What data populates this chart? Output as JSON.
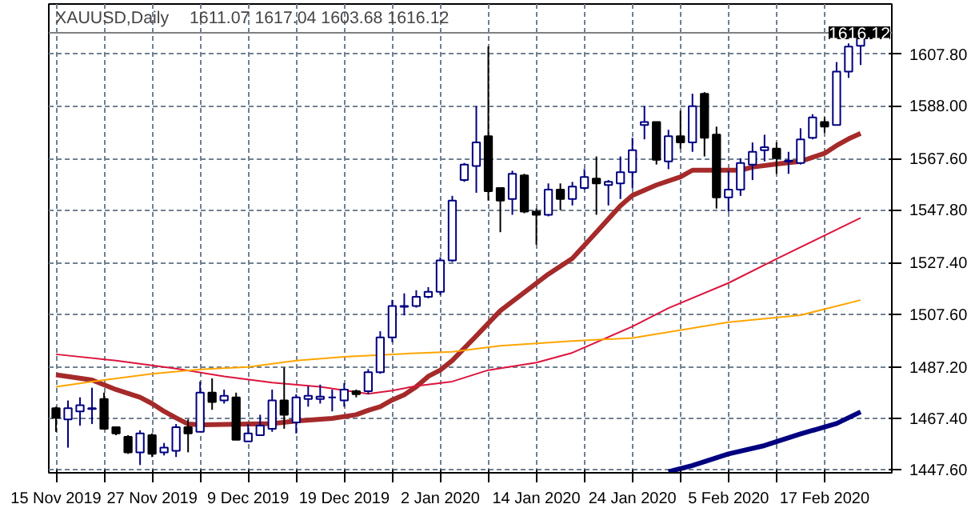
{
  "chart_data": {
    "type": "candlestick",
    "title": "XAUUSD,Daily",
    "subtitle": "1611.07 1617.04 1603.68 1616.12",
    "categories": [
      "15 Nov 2019",
      null,
      null,
      null,
      null,
      null,
      null,
      null,
      "27 Nov 2019",
      null,
      null,
      null,
      null,
      null,
      null,
      null,
      "9 Dec 2019",
      null,
      null,
      null,
      null,
      null,
      null,
      null,
      "19 Dec 2019",
      null,
      null,
      null,
      null,
      null,
      null,
      null,
      "2 Jan 2020",
      null,
      null,
      null,
      null,
      null,
      null,
      null,
      "14 Jan 2020",
      null,
      null,
      null,
      null,
      null,
      null,
      null,
      "24 Jan 2020",
      null,
      null,
      null,
      null,
      null,
      null,
      null,
      "5 Feb 2020",
      null,
      null,
      null,
      null,
      null,
      null,
      null,
      "17 Feb 2020",
      null,
      null,
      null
    ],
    "ohlc": [
      [
        1471.3,
        1471.9,
        1462.2,
        1467.6
      ],
      [
        1467.0,
        1474.3,
        1456.1,
        1471.3
      ],
      [
        1470.1,
        1475.5,
        1464.6,
        1472.5
      ],
      [
        1471.0,
        1479.2,
        1465.2,
        1471.3
      ],
      [
        1474.9,
        1477.3,
        1463.4,
        1463.4
      ],
      [
        1464.0,
        1464.0,
        1460.9,
        1461.6
      ],
      [
        1460.3,
        1460.9,
        1453.7,
        1454.3
      ],
      [
        1454.3,
        1462.8,
        1449.4,
        1461.6
      ],
      [
        1460.9,
        1461.6,
        1452.5,
        1453.7
      ],
      [
        1454.3,
        1457.9,
        1453.1,
        1456.1
      ],
      [
        1454.9,
        1465.2,
        1452.5,
        1464.0
      ],
      [
        1464.0,
        1467.0,
        1454.3,
        1461.6
      ],
      [
        1462.2,
        1481.6,
        1462.2,
        1477.3
      ],
      [
        1477.3,
        1482.8,
        1470.7,
        1473.7
      ],
      [
        1474.3,
        1478.5,
        1473.1,
        1476.1
      ],
      [
        1475.5,
        1477.3,
        1459.1,
        1459.1
      ],
      [
        1458.5,
        1465.2,
        1458.5,
        1461.6
      ],
      [
        1460.9,
        1468.8,
        1460.9,
        1464.6
      ],
      [
        1463.4,
        1478.5,
        1462.2,
        1474.3
      ],
      [
        1474.3,
        1487.0,
        1463.4,
        1468.8
      ],
      [
        1465.8,
        1476.7,
        1461.6,
        1475.5
      ],
      [
        1474.9,
        1479.8,
        1471.9,
        1476.1
      ],
      [
        1474.9,
        1480.4,
        1473.1,
        1475.8
      ],
      [
        1475.5,
        1478.5,
        1470.1,
        1475.5
      ],
      [
        1474.3,
        1481.0,
        1471.9,
        1478.5
      ],
      [
        1477.9,
        1478.5,
        1475.5,
        1476.7
      ],
      [
        1477.9,
        1486.4,
        1476.7,
        1485.2
      ],
      [
        1485.2,
        1501.0,
        1484.6,
        1498.6
      ],
      [
        1498.6,
        1513.1,
        1496.8,
        1510.7
      ],
      [
        1510.4,
        1515.6,
        1507.1,
        1510.7
      ],
      [
        1510.7,
        1516.8,
        1510.1,
        1514.3
      ],
      [
        1514.3,
        1518.0,
        1513.7,
        1516.2
      ],
      [
        1516.2,
        1529.5,
        1515.0,
        1528.3
      ],
      [
        1528.3,
        1553.2,
        1527.7,
        1551.4
      ],
      [
        1559.3,
        1565.9,
        1558.6,
        1565.3
      ],
      [
        1564.7,
        1587.8,
        1554.4,
        1573.8
      ],
      [
        1576.2,
        1610.8,
        1551.4,
        1555.0
      ],
      [
        1556.2,
        1556.2,
        1539.2,
        1551.4
      ],
      [
        1552.0,
        1562.9,
        1545.9,
        1561.7
      ],
      [
        1561.1,
        1561.7,
        1546.5,
        1547.1
      ],
      [
        1547.1,
        1548.3,
        1534.4,
        1545.9
      ],
      [
        1545.9,
        1558.0,
        1545.3,
        1555.6
      ],
      [
        1555.6,
        1558.0,
        1547.7,
        1552.0
      ],
      [
        1552.0,
        1558.6,
        1549.5,
        1556.8
      ],
      [
        1556.2,
        1563.5,
        1555.6,
        1560.5
      ],
      [
        1559.9,
        1568.4,
        1545.9,
        1558.0
      ],
      [
        1557.4,
        1559.3,
        1549.5,
        1558.6
      ],
      [
        1558.0,
        1568.4,
        1552.0,
        1562.3
      ],
      [
        1562.3,
        1575.6,
        1556.2,
        1570.8
      ],
      [
        1580.5,
        1587.8,
        1575.0,
        1581.7
      ],
      [
        1581.7,
        1581.7,
        1565.3,
        1567.1
      ],
      [
        1566.5,
        1578.7,
        1563.5,
        1576.2
      ],
      [
        1576.2,
        1586.0,
        1571.4,
        1573.8
      ],
      [
        1573.8,
        1592.6,
        1570.2,
        1587.8
      ],
      [
        1592.6,
        1593.2,
        1568.4,
        1575.6
      ],
      [
        1576.8,
        1579.9,
        1548.3,
        1552.6
      ],
      [
        1552.6,
        1562.9,
        1547.1,
        1555.6
      ],
      [
        1555.6,
        1567.7,
        1553.2,
        1565.9
      ],
      [
        1565.3,
        1573.8,
        1559.3,
        1570.2
      ],
      [
        1570.8,
        1576.8,
        1566.5,
        1572.0
      ],
      [
        1571.4,
        1573.8,
        1561.7,
        1567.7
      ],
      [
        1566.5,
        1570.2,
        1561.7,
        1566.8
      ],
      [
        1565.9,
        1579.3,
        1565.3,
        1575.0
      ],
      [
        1575.6,
        1584.7,
        1575.0,
        1583.5
      ],
      [
        1581.7,
        1583.5,
        1577.5,
        1579.9
      ],
      [
        1580.5,
        1604.8,
        1580.5,
        1601.1
      ],
      [
        1601.1,
        1612.0,
        1598.7,
        1610.8
      ],
      [
        1611.07,
        1617.04,
        1603.68,
        1616.12
      ]
    ],
    "series": [
      {
        "type": "line",
        "color": "#a52a2a",
        "values": [
          1484.2,
          null,
          null,
          1482.2,
          null,
          1478.5,
          null,
          1475.5,
          1473.1,
          1470.1,
          1467.6,
          1465.2,
          1464.9,
          null,
          null,
          null,
          null,
          null,
          1465.4,
          null,
          1466.4,
          null,
          null,
          1467.4,
          null,
          1468.8,
          1470.5,
          1471.9,
          1474.5,
          1476.5,
          1479.6,
          1483.6,
          1486.0,
          1489.7,
          null,
          1499.2,
          null,
          1508.9,
          null,
          null,
          null,
          1523.0,
          null,
          1529.1,
          null,
          1539.2,
          null,
          1549.4,
          1553.4,
          null,
          1557.4,
          null,
          1560.5,
          1563.1,
          null,
          null,
          null,
          1563.1,
          1564.3,
          null,
          1565.5,
          null,
          1566.5,
          null,
          1569.6,
          1572.6,
          1575.2,
          1577.3
        ]
      },
      {
        "type": "line",
        "color": "#dc143c",
        "values": [
          1492.1,
          null,
          null,
          null,
          null,
          1489.7,
          null,
          null,
          null,
          null,
          1486.6,
          null,
          null,
          null,
          1483.6,
          null,
          null,
          null,
          1481.2,
          null,
          null,
          null,
          1479.6,
          null,
          null,
          null,
          1476.9,
          null,
          1478.1,
          null,
          1479.9,
          null,
          null,
          1481.6,
          null,
          null,
          1486.0,
          null,
          null,
          null,
          1488.9,
          null,
          null,
          1492.7,
          null,
          null,
          null,
          null,
          1502.8,
          null,
          null,
          1509.9,
          null,
          null,
          null,
          null,
          1519.6,
          null,
          null,
          null,
          1528.9,
          null,
          null,
          null,
          null,
          null,
          null,
          1544.7
        ]
      },
      {
        "type": "line",
        "color": "#ffa500",
        "values": [
          1479.6,
          null,
          null,
          1481.6,
          null,
          null,
          null,
          null,
          1484.6,
          null,
          null,
          null,
          1486.3,
          null,
          null,
          null,
          1487.2,
          null,
          null,
          null,
          1489.7,
          null,
          null,
          null,
          1491.1,
          null,
          null,
          null,
          1492.1,
          null,
          null,
          null,
          null,
          1493.1,
          null,
          null,
          null,
          1495.4,
          null,
          null,
          null,
          null,
          null,
          1497.2,
          null,
          null,
          null,
          null,
          1498.4,
          null,
          null,
          null,
          null,
          null,
          null,
          null,
          1504.5,
          null,
          null,
          null,
          null,
          null,
          1507.2,
          null,
          null,
          null,
          null,
          1513.0
        ]
      },
      {
        "type": "line",
        "color": "#000080",
        "values": [
          null,
          null,
          null,
          null,
          null,
          null,
          null,
          null,
          null,
          null,
          null,
          null,
          null,
          null,
          null,
          null,
          null,
          null,
          null,
          null,
          null,
          null,
          null,
          null,
          null,
          null,
          null,
          null,
          null,
          null,
          null,
          null,
          null,
          null,
          null,
          null,
          null,
          null,
          null,
          null,
          null,
          null,
          null,
          null,
          null,
          null,
          null,
          null,
          null,
          null,
          null,
          1446.8,
          null,
          1449.2,
          null,
          null,
          1453.7,
          null,
          null,
          1456.9,
          null,
          null,
          1461.4,
          null,
          null,
          1465.4,
          null,
          1469.9
        ]
      }
    ],
    "ylim": [
      1446.4,
      1627.2
    ],
    "yticks": [
      {
        "value": 1447.6,
        "label": "1447.60"
      },
      {
        "value": 1467.4,
        "label": "1467.40"
      },
      {
        "value": 1487.2,
        "label": "1487.20"
      },
      {
        "value": 1507.6,
        "label": "1507.60"
      },
      {
        "value": 1527.4,
        "label": "1527.40"
      },
      {
        "value": 1547.8,
        "label": "1547.80"
      },
      {
        "value": 1567.6,
        "label": "1567.60"
      },
      {
        "value": 1588.0,
        "label": "1588.00"
      },
      {
        "value": 1607.8,
        "label": "1607.80"
      }
    ],
    "ref_lines": [
      {
        "axis": "y",
        "value": 1616.12,
        "label": "1616.12",
        "color": "#808080"
      }
    ],
    "grid": true
  }
}
